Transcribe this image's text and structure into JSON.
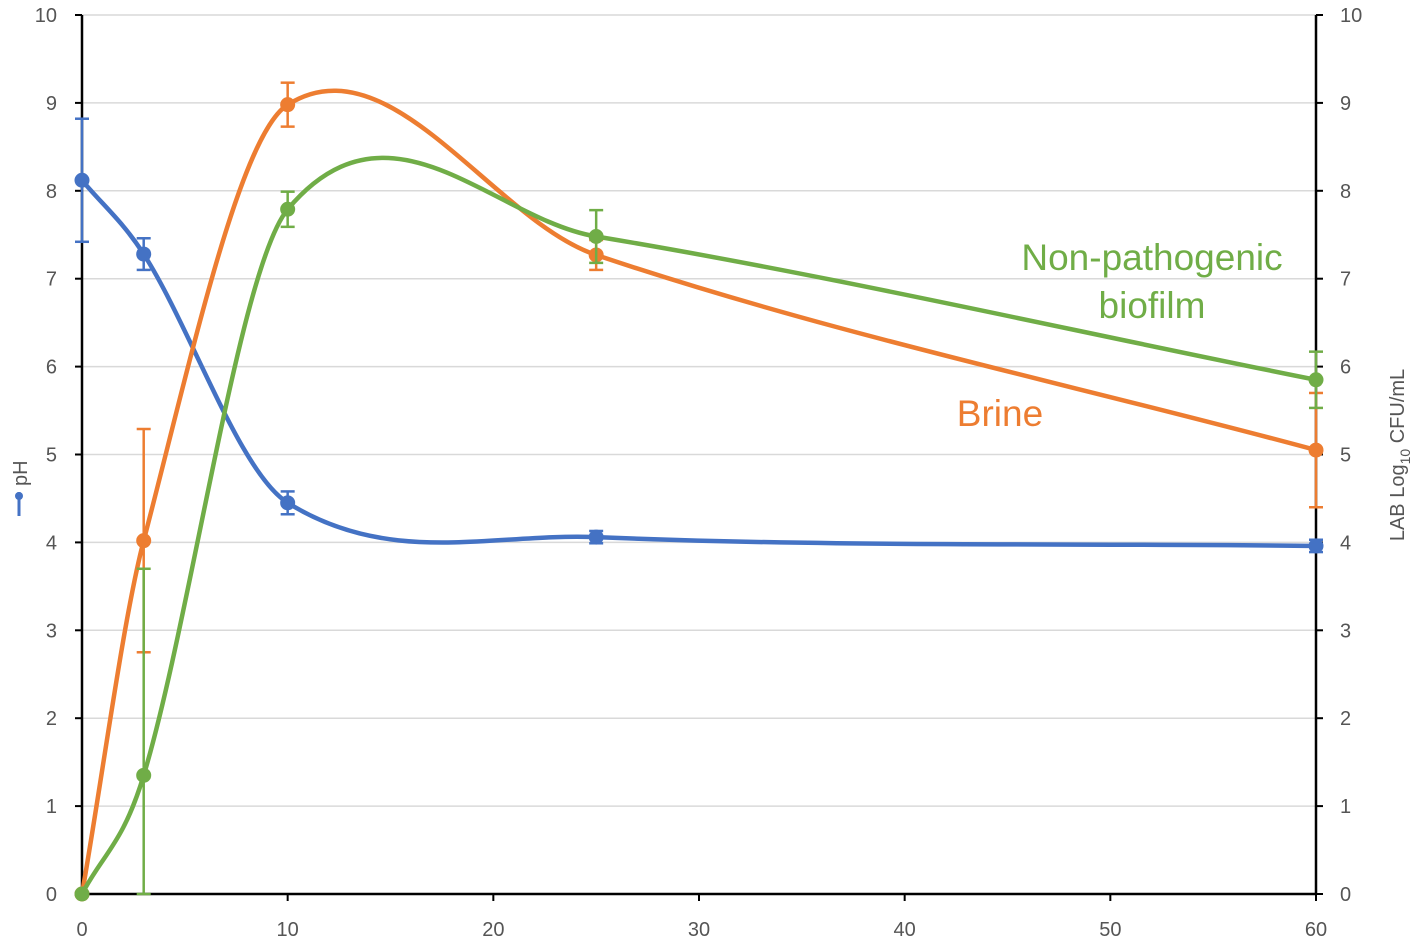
{
  "chart_data": {
    "type": "line",
    "xlim": [
      0,
      60
    ],
    "x_ticks": [
      "0",
      "10",
      "20",
      "30",
      "40",
      "50",
      "60"
    ],
    "y_left": {
      "label": "pH",
      "ylim": [
        0,
        10
      ],
      "ticks": [
        "0",
        "1",
        "2",
        "3",
        "4",
        "5",
        "6",
        "7",
        "8",
        "9",
        "10"
      ]
    },
    "y_right": {
      "label_main": "LAB Log",
      "label_sub": "10",
      "label_tail": " CFU/mL",
      "ylim": [
        0,
        10
      ],
      "ticks": [
        "0",
        "1",
        "2",
        "3",
        "4",
        "5",
        "6",
        "7",
        "8",
        "9",
        "10"
      ]
    },
    "grid": true,
    "series": [
      {
        "key": "ph",
        "axis": "left",
        "color": "#4472C4",
        "smooth": true,
        "points": [
          {
            "x": 0,
            "y": 8.12,
            "err": 0.7
          },
          {
            "x": 3,
            "y": 7.28,
            "err": 0.18
          },
          {
            "x": 10,
            "y": 4.45,
            "err": 0.13
          },
          {
            "x": 25,
            "y": 4.06,
            "err": 0.07
          },
          {
            "x": 60,
            "y": 3.96,
            "err": 0.07
          }
        ]
      },
      {
        "key": "brine",
        "name": "Brine",
        "axis": "right",
        "color": "#ED7D31",
        "smooth": true,
        "points": [
          {
            "x": 0,
            "y": 0,
            "err": 0
          },
          {
            "x": 3,
            "y": 4.02,
            "err": 1.27
          },
          {
            "x": 10,
            "y": 8.98,
            "err": 0.25
          },
          {
            "x": 25,
            "y": 7.27,
            "err": 0.17
          },
          {
            "x": 60,
            "y": 5.05,
            "err": 0.65
          }
        ]
      },
      {
        "key": "biofilm",
        "name_lines": [
          "Non-pathogenic",
          "biofilm"
        ],
        "axis": "right",
        "color": "#70AD47",
        "smooth": true,
        "points": [
          {
            "x": 0,
            "y": 0,
            "err": 0
          },
          {
            "x": 3,
            "y": 1.35,
            "err": 2.35
          },
          {
            "x": 10,
            "y": 7.79,
            "err": 0.2
          },
          {
            "x": 25,
            "y": 7.48,
            "err": 0.3
          },
          {
            "x": 60,
            "y": 5.85,
            "err": 0.32
          }
        ]
      }
    ]
  }
}
